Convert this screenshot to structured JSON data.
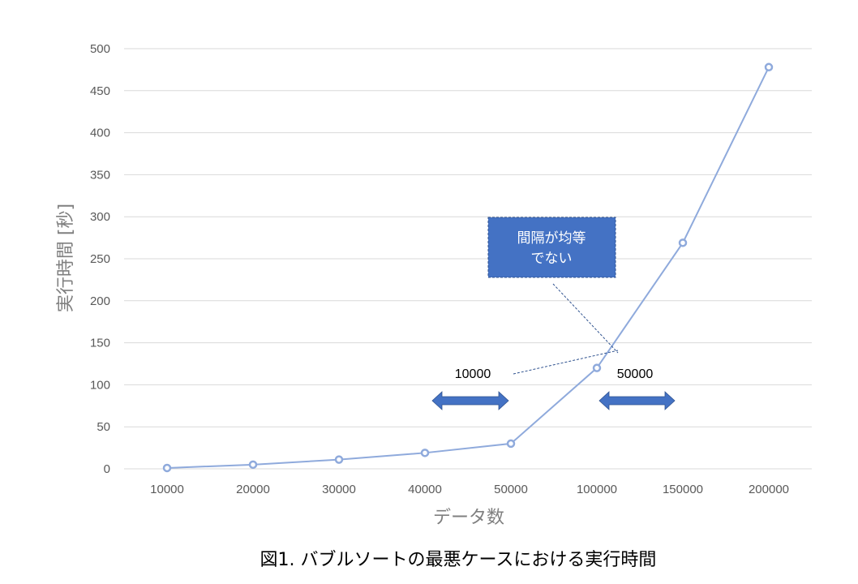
{
  "chart_data": {
    "type": "line",
    "title": "",
    "caption": "図1. バブルソートの最悪ケースにおける実行時間",
    "xlabel": "データ数",
    "ylabel": "実行時間 [秒]",
    "categories": [
      "10000",
      "20000",
      "30000",
      "40000",
      "50000",
      "100000",
      "150000",
      "200000"
    ],
    "values": [
      1,
      5,
      11,
      19,
      30,
      120,
      269,
      478
    ],
    "ylim": [
      0,
      500
    ],
    "yticks": [
      0,
      50,
      100,
      150,
      200,
      250,
      300,
      350,
      400,
      450,
      500
    ],
    "grid": true,
    "legend": "none",
    "line_color": "#8faadc",
    "annotations": {
      "callout": {
        "lines": [
          "間隔が均等",
          "でない"
        ],
        "fill": "#4472c4"
      },
      "interval_left": "10000",
      "interval_right": "50000",
      "arrow_color": "#4472c4"
    }
  }
}
